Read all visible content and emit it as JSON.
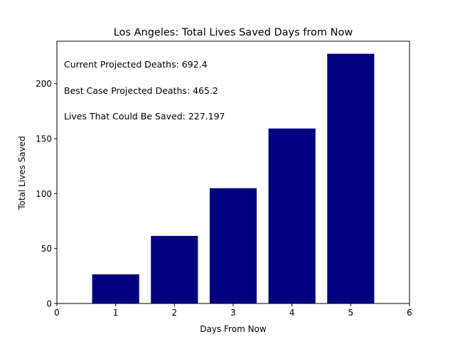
{
  "chart_data": {
    "type": "bar",
    "title": "Los Angeles: Total Lives Saved Days from Now",
    "xlabel": "Days From Now",
    "ylabel": "Total Lives Saved",
    "categories": [
      1,
      2,
      3,
      4,
      5
    ],
    "values": [
      26.5,
      61.5,
      104.9,
      159.2,
      227.197
    ],
    "xlim": [
      0,
      6
    ],
    "ylim": [
      0,
      238.6
    ],
    "xticks": [
      "0",
      "1",
      "2",
      "3",
      "4",
      "5",
      "6"
    ],
    "yticks": [
      "0",
      "50",
      "100",
      "150",
      "200"
    ],
    "ytick_values": [
      0,
      50,
      100,
      150,
      200
    ],
    "grid": false,
    "bar_color": "#000080",
    "annotations": [
      "Current Projected Deaths: 692.4",
      "Best Case Projected Deaths: 465.2",
      "Lives That Could Be Saved: 227.197"
    ]
  }
}
